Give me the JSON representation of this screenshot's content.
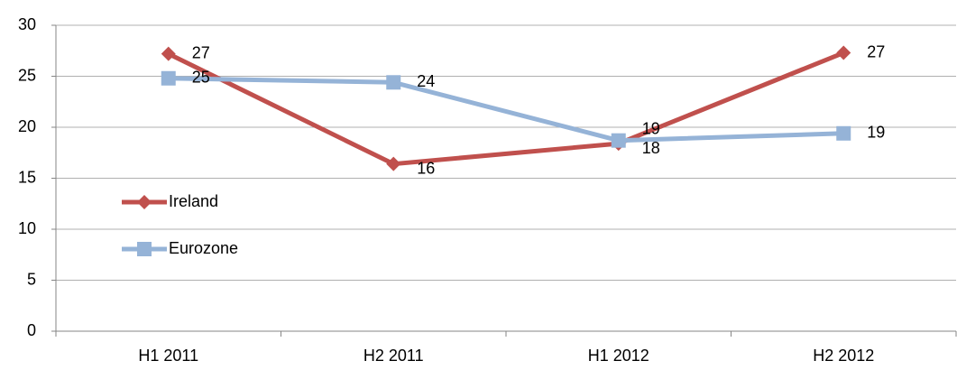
{
  "chart_data": {
    "type": "line",
    "categories": [
      "H1 2011",
      "H2 2011",
      "H1 2012",
      "H2 2012"
    ],
    "series": [
      {
        "name": "Ireland",
        "color": "#c0504d",
        "marker": "diamond",
        "values": [
          27.2,
          16.4,
          18.4,
          27.3
        ],
        "value_labels": [
          "27",
          "16",
          "18",
          "27"
        ]
      },
      {
        "name": "Eurozone",
        "color": "#95b3d7",
        "marker": "square",
        "values": [
          24.8,
          24.4,
          18.7,
          19.4
        ],
        "value_labels": [
          "25",
          "24",
          "19",
          "19"
        ]
      }
    ],
    "ylim": [
      0,
      30
    ],
    "yticks": [
      0,
      5,
      10,
      15,
      20,
      25,
      30
    ],
    "grid": true,
    "legend": "left"
  }
}
